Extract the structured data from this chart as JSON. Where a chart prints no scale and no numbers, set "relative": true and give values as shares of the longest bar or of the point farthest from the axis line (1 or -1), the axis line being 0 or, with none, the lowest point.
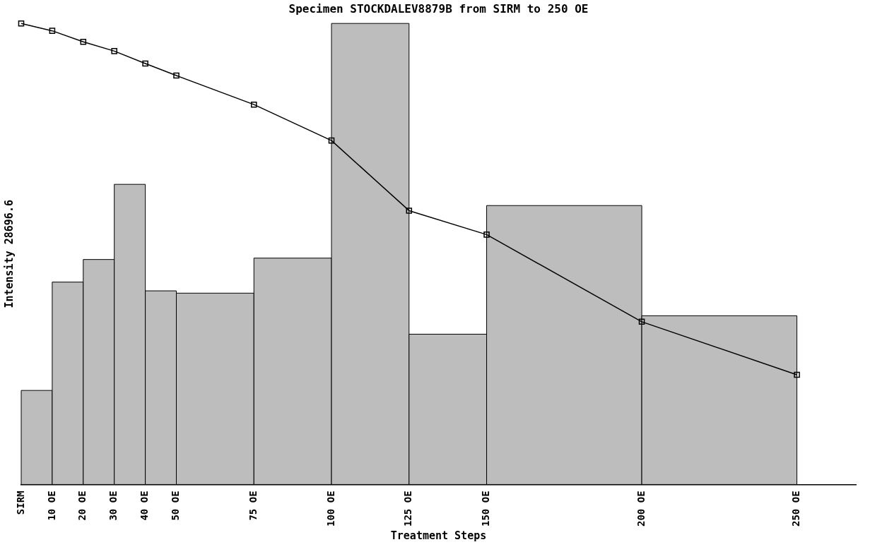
{
  "chart_data": {
    "type": "line",
    "title": "Specimen STOCKDALEV8879B from SIRM to 250 OE",
    "xlabel": "Treatment Steps",
    "ylabel": "Intensity 28696.6",
    "relative": true,
    "marker": "square",
    "xlim": [
      0,
      269
    ],
    "xticks": [
      {
        "value": 0,
        "label": "SIRM"
      },
      {
        "value": 10,
        "label": "10 OE"
      },
      {
        "value": 20,
        "label": "20 OE"
      },
      {
        "value": 30,
        "label": "30 OE"
      },
      {
        "value": 40,
        "label": "40 OE"
      },
      {
        "value": 50,
        "label": "50 OE"
      },
      {
        "value": 75,
        "label": "75 OE"
      },
      {
        "value": 100,
        "label": "100 OE"
      },
      {
        "value": 125,
        "label": "125 OE"
      },
      {
        "value": 150,
        "label": "150 OE"
      },
      {
        "value": 200,
        "label": "200 OE"
      },
      {
        "value": 250,
        "label": "250 OE"
      }
    ],
    "series": [
      {
        "type": "histogram",
        "color": "#bdbdbd",
        "bins": [
          0,
          10,
          20,
          30,
          40,
          50,
          75,
          100,
          125,
          150,
          200,
          250
        ],
        "values": [
          0.204,
          0.439,
          0.488,
          0.651,
          0.42,
          0.415,
          0.491,
          1,
          0.326,
          0.605,
          0.366
        ]
      },
      {
        "color": "#000000",
        "x": [
          0,
          10,
          20,
          30,
          40,
          50,
          75,
          100,
          125,
          150,
          200,
          250
        ],
        "values": [
          1,
          0.984,
          0.96,
          0.94,
          0.913,
          0.887,
          0.824,
          0.746,
          0.594,
          0.542,
          0.353,
          0.238
        ]
      }
    ]
  }
}
